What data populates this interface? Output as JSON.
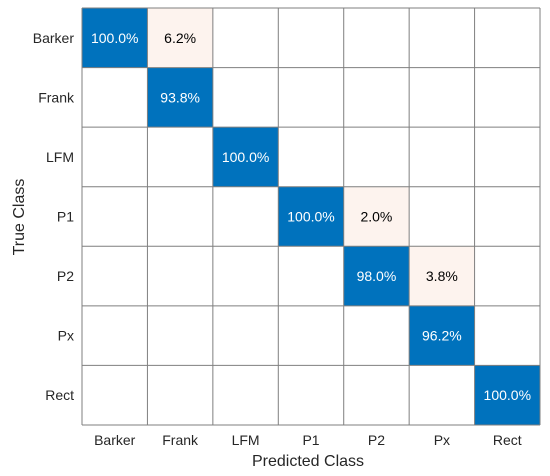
{
  "chart_data": {
    "type": "heatmap",
    "title": "",
    "xlabel": "Predicted Class",
    "ylabel": "True Class",
    "row_labels": [
      "Barker",
      "Frank",
      "LFM",
      "P1",
      "P2",
      "Px",
      "Rect"
    ],
    "col_labels": [
      "Barker",
      "Frank",
      "LFM",
      "P1",
      "P2",
      "Px",
      "Rect"
    ],
    "cells": [
      {
        "row": 0,
        "col": 0,
        "value": 100.0,
        "label": "100.0%"
      },
      {
        "row": 0,
        "col": 1,
        "value": 6.2,
        "label": "6.2%"
      },
      {
        "row": 1,
        "col": 1,
        "value": 93.8,
        "label": "93.8%"
      },
      {
        "row": 2,
        "col": 2,
        "value": 100.0,
        "label": "100.0%"
      },
      {
        "row": 3,
        "col": 3,
        "value": 100.0,
        "label": "100.0%"
      },
      {
        "row": 3,
        "col": 4,
        "value": 2.0,
        "label": "2.0%"
      },
      {
        "row": 4,
        "col": 4,
        "value": 98.0,
        "label": "98.0%"
      },
      {
        "row": 4,
        "col": 5,
        "value": 3.8,
        "label": "3.8%"
      },
      {
        "row": 5,
        "col": 5,
        "value": 96.2,
        "label": "96.2%"
      },
      {
        "row": 6,
        "col": 6,
        "value": 100.0,
        "label": "100.0%"
      }
    ],
    "colors": {
      "diagonal": "#0072BD",
      "off_diagonal": "#FDF3EE",
      "grid": "#7f7f7f",
      "text_on_dark": "#ffffff",
      "text_on_light": "#000000"
    }
  }
}
